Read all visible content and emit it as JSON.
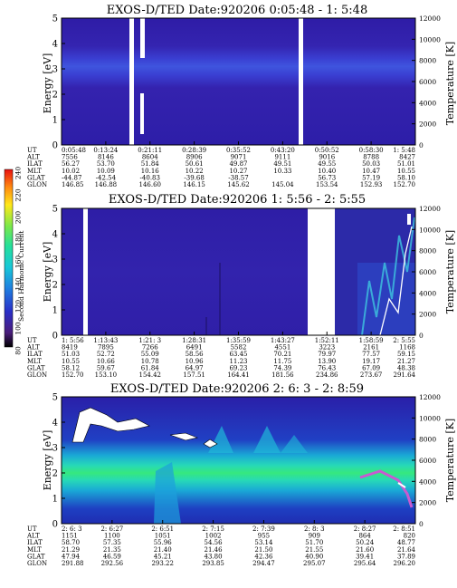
{
  "chart_data": [
    {
      "type": "heatmap",
      "title": "EXOS-D/TED   Date:920206  0:05:48 - 1: 5:48",
      "ylabel": "Energy [eV]",
      "y2label": "Temperature [K]",
      "ylim": [
        0,
        5
      ],
      "y2lim": [
        0,
        12000
      ],
      "yticks": [
        "0",
        "1",
        "2",
        "3",
        "4",
        "5"
      ],
      "y2ticks": [
        "0",
        "2000",
        "4000",
        "6000",
        "8000",
        "10000",
        "12000"
      ],
      "ephemeris_rows": [
        "UT",
        "ALT",
        "ILAT",
        "MLT",
        "GLAT",
        "GLON"
      ],
      "ephemeris_cols": [
        [
          "0:05:48",
          "7556",
          "56.27",
          "10.02",
          "-44.87",
          "146.85"
        ],
        [
          "0:13:24",
          "8146",
          "53.70",
          "10.09",
          "-42.54",
          "146.88"
        ],
        [
          "0:21:11",
          "8604",
          "51.84",
          "10.16",
          "-40.83",
          "146.60"
        ],
        [
          "0:28:39",
          "8906",
          "50.61",
          "10.22",
          "-39.68",
          "146.15"
        ],
        [
          "0:35:52",
          "9071",
          "49.87",
          "10.27",
          "-38.57",
          "145.62"
        ],
        [
          "0:43:20",
          "9111",
          "49.51",
          "10.33",
          "",
          "145.04"
        ],
        [
          "0:50:52",
          "9016",
          "49.55",
          "10.40",
          "56.73",
          "153.54"
        ],
        [
          "0:58:30",
          "8788",
          "50.03",
          "10.47",
          "57.19",
          "152.93"
        ],
        [
          "1: 5:48",
          "8427",
          "51.01",
          "10.55",
          "58.10",
          "152.70"
        ]
      ],
      "gaps_ut": [
        "0:19:xx",
        "0:21:xx",
        "0:43:20"
      ]
    },
    {
      "type": "heatmap",
      "title": "EXOS-D/TED   Date:920206  1: 5:56 - 2: 5:55",
      "ylabel": "Energy [eV]",
      "y2label": "Temperature [K]",
      "ylim": [
        0,
        5
      ],
      "y2lim": [
        0,
        12000
      ],
      "yticks": [
        "0",
        "1",
        "2",
        "3",
        "4",
        "5"
      ],
      "y2ticks": [
        "0",
        "2000",
        "4000",
        "6000",
        "8000",
        "10000",
        "12000"
      ],
      "ephemeris_rows": [
        "UT",
        "ALT",
        "ILAT",
        "MLT",
        "GLAT",
        "GLON"
      ],
      "ephemeris_cols": [
        [
          "1: 5:56",
          "8419",
          "51.03",
          "10.55",
          "58.12",
          "152.70"
        ],
        [
          "1:13:43",
          "7895",
          "52.72",
          "10.66",
          "59.67",
          "153.10"
        ],
        [
          "1:21: 3",
          "7266",
          "55.09",
          "10.78",
          "61.84",
          "154.42"
        ],
        [
          "1:28:31",
          "6491",
          "58.56",
          "10.96",
          "64.97",
          "157.51"
        ],
        [
          "1:35:59",
          "5582",
          "63.45",
          "11.23",
          "69.23",
          "164.41"
        ],
        [
          "1:43:27",
          "4551",
          "70.21",
          "11.75",
          "74.39",
          "181.56"
        ],
        [
          "1:52:11",
          "3223",
          "79.97",
          "13.90",
          "76.43",
          "234.86"
        ],
        [
          "1:58:59",
          "2161",
          "77.57",
          "19.17",
          "67.09",
          "273.67"
        ],
        [
          "2: 5:55",
          "1168",
          "59.15",
          "21.27",
          "48.38",
          "291.64"
        ]
      ]
    },
    {
      "type": "heatmap",
      "title": "EXOS-D/TED   Date:920206  2: 6: 3 - 2: 8:59",
      "ylabel": "Energy [eV]",
      "y2label": "Temperature [K]",
      "ylim": [
        0,
        5
      ],
      "y2lim": [
        0,
        12000
      ],
      "yticks": [
        "0",
        "1",
        "2",
        "3",
        "4",
        "5"
      ],
      "y2ticks": [
        "0",
        "2000",
        "4000",
        "6000",
        "8000",
        "10000",
        "12000"
      ],
      "ephemeris_rows": [
        "UT",
        "ALT",
        "ILAT",
        "MLT",
        "GLAT",
        "GLON"
      ],
      "ephemeris_cols": [
        [
          "2: 6: 3",
          "1151",
          "58.70",
          "21.29",
          "47.94",
          "291.88"
        ],
        [
          "2: 6:27",
          "1100",
          "57.35",
          "21.35",
          "46.59",
          "292.56"
        ],
        [
          "2: 6:51",
          "1051",
          "55.96",
          "21.40",
          "45.21",
          "293.22"
        ],
        [
          "2: 7:15",
          "1002",
          "54.56",
          "21.46",
          "43.80",
          "293.85"
        ],
        [
          "2: 7:39",
          "955",
          "53.14",
          "21.50",
          "42.36",
          "294.47"
        ],
        [
          "2: 8: 3",
          "909",
          "51.70",
          "21.55",
          "40.90",
          "295.07"
        ],
        [
          "2: 8:27",
          "864",
          "50.24",
          "21.60",
          "39.41",
          "295.64"
        ],
        [
          "2: 8:51",
          "820",
          "48.77",
          "21.64",
          "37.89",
          "296.20"
        ]
      ]
    }
  ],
  "colorbar": {
    "label": "Second Harmonic Current",
    "ticks": [
      "80",
      "100",
      "120",
      "140",
      "160",
      "180",
      "200",
      "220",
      "240"
    ]
  },
  "colors": {
    "background": "#ffffff",
    "plot_dark_blue": "#2f1fa6",
    "band_blue": "#3d4fd6",
    "panel3_base": "#1f2fb0",
    "panel3_cyan": "#18c6d8",
    "panel3_green": "#2ee090"
  }
}
